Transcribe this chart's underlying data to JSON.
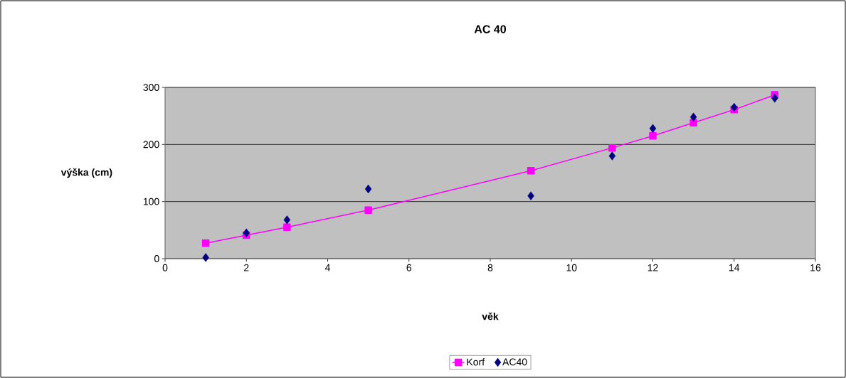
{
  "chart_data": {
    "type": "scatter",
    "title": "AC 40",
    "xlabel": "věk",
    "ylabel": "výška (cm)",
    "xlim": [
      0,
      16
    ],
    "xticks": [
      0,
      2,
      4,
      6,
      8,
      10,
      12,
      14,
      16
    ],
    "ylim": [
      0,
      300
    ],
    "yticks": [
      0,
      100,
      200,
      300
    ],
    "grid": "y",
    "legend": "bottom",
    "series": [
      {
        "name": "Korf",
        "type": "line",
        "marker": "square",
        "color": "#ff00ff",
        "x": [
          1,
          2,
          3,
          5,
          9,
          11,
          12,
          13,
          14,
          15
        ],
        "values": [
          27,
          41,
          55,
          85,
          154,
          194,
          215,
          238,
          261,
          287
        ]
      },
      {
        "name": "AC40",
        "marker": "diamond",
        "color": "#000080",
        "x": [
          1,
          2,
          3,
          5,
          9,
          11,
          12,
          13,
          14,
          15
        ],
        "values": [
          2,
          45,
          68,
          122,
          110,
          180,
          228,
          248,
          265,
          281
        ]
      }
    ]
  }
}
